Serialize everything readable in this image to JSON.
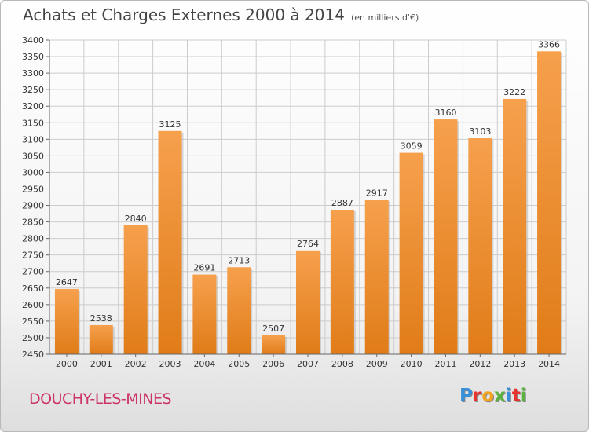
{
  "header": {
    "title": "Achats et Charges Externes 2000 à 2014",
    "unit": "(en milliers d'€)"
  },
  "footer": {
    "commune": "DOUCHY-LES-MINES",
    "logo_text": "Proxiti",
    "logo_colors": [
      "#3a8fd9",
      "#e8322d",
      "#f4a41c",
      "#5ab33e",
      "#3a8fd9",
      "#e8322d",
      "#5ab33e"
    ]
  },
  "colors": {
    "bar_light": "#f6a04d",
    "bar_dark": "#e07c18",
    "grid": "#cccccc",
    "commune": "#cc3366"
  },
  "chart_data": {
    "type": "bar",
    "title": "Achats et Charges Externes 2000 à 2014",
    "subtitle": "(en milliers d'€)",
    "xlabel": "",
    "ylabel": "",
    "categories": [
      "2000",
      "2001",
      "2002",
      "2003",
      "2004",
      "2005",
      "2006",
      "2007",
      "2008",
      "2009",
      "2010",
      "2011",
      "2012",
      "2013",
      "2014"
    ],
    "values": [
      2647,
      2538,
      2840,
      3125,
      2691,
      2713,
      2507,
      2764,
      2887,
      2917,
      3059,
      3160,
      3103,
      3222,
      3366
    ],
    "data_labels": [
      "2647",
      "2538",
      "2840",
      "3125",
      "2691",
      "2713",
      "2507",
      "2764",
      "2887",
      "2917",
      "3059",
      "3160",
      "3103",
      "3222",
      "3366"
    ],
    "ylim": [
      2450,
      3400
    ],
    "ytick_step": 50,
    "yticks": [
      "2450",
      "2500",
      "2550",
      "2600",
      "2650",
      "2700",
      "2750",
      "2800",
      "2850",
      "2900",
      "2950",
      "3000",
      "3050",
      "3100",
      "3150",
      "3200",
      "3250",
      "3300",
      "3350",
      "3400"
    ],
    "grid": true,
    "legend": "none"
  }
}
